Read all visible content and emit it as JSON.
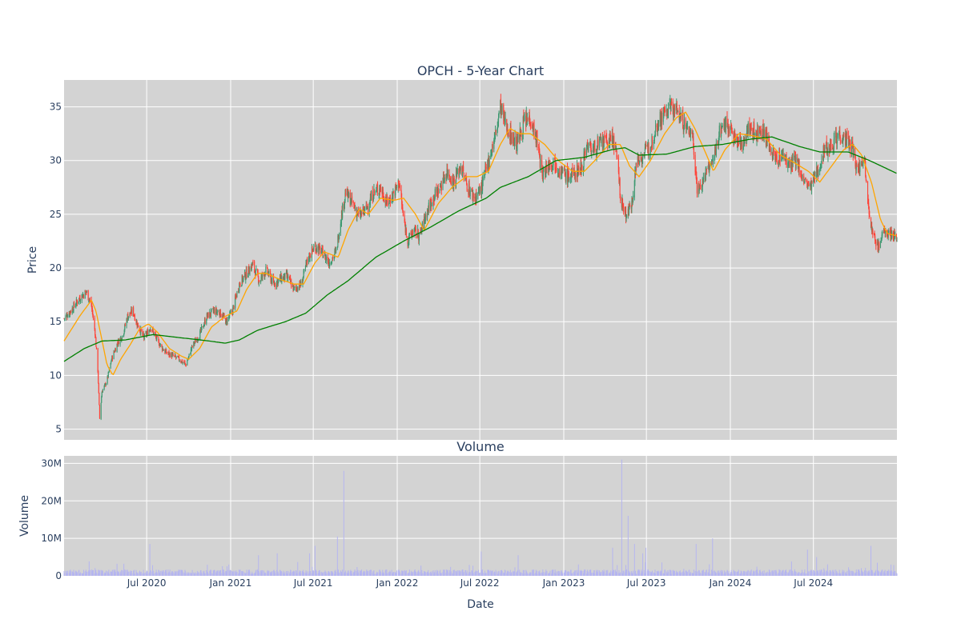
{
  "chart_data": [
    {
      "type": "candlestick",
      "title": "OPCH - 5-Year Chart",
      "ylabel": "Price",
      "ylim": [
        4,
        37.5
      ],
      "yticks": [
        5,
        10,
        15,
        20,
        25,
        30,
        35
      ],
      "xlim": [
        "2020-01-02",
        "2024-12-31"
      ],
      "grid": true,
      "legend": "none",
      "colors": {
        "increasing": "#3d9970",
        "decreasing": "#ff4136",
        "ma_short": "#ffa500",
        "ma_long": "#008000",
        "plot_bg": "#d3d3d3",
        "grid": "#ffffff"
      },
      "price_path": [
        [
          "2020-01-02",
          15.3
        ],
        [
          "2020-01-20",
          16.2
        ],
        [
          "2020-02-05",
          17.2
        ],
        [
          "2020-02-20",
          17.8
        ],
        [
          "2020-03-02",
          16.5
        ],
        [
          "2020-03-10",
          14.0
        ],
        [
          "2020-03-16",
          10.5
        ],
        [
          "2020-03-20",
          6.0
        ],
        [
          "2020-03-25",
          8.5
        ],
        [
          "2020-04-05",
          9.5
        ],
        [
          "2020-04-15",
          11.5
        ],
        [
          "2020-04-28",
          13.0
        ],
        [
          "2020-05-10",
          13.8
        ],
        [
          "2020-05-20",
          15.5
        ],
        [
          "2020-06-01",
          16.0
        ],
        [
          "2020-06-10",
          14.8
        ],
        [
          "2020-06-25",
          13.5
        ],
        [
          "2020-07-10",
          14.5
        ],
        [
          "2020-07-25",
          13.2
        ],
        [
          "2020-08-10",
          12.2
        ],
        [
          "2020-08-28",
          11.8
        ],
        [
          "2020-09-10",
          11.5
        ],
        [
          "2020-09-25",
          11.0
        ],
        [
          "2020-10-10",
          12.8
        ],
        [
          "2020-10-25",
          13.8
        ],
        [
          "2020-11-10",
          15.5
        ],
        [
          "2020-11-25",
          16.0
        ],
        [
          "2020-12-10",
          15.8
        ],
        [
          "2020-12-22",
          15.0
        ],
        [
          "2021-01-05",
          16.0
        ],
        [
          "2021-01-20",
          18.5
        ],
        [
          "2021-02-05",
          19.5
        ],
        [
          "2021-02-18",
          20.3
        ],
        [
          "2021-03-05",
          18.8
        ],
        [
          "2021-03-20",
          19.8
        ],
        [
          "2021-04-05",
          18.5
        ],
        [
          "2021-04-20",
          19.0
        ],
        [
          "2021-05-05",
          19.2
        ],
        [
          "2021-05-20",
          18.0
        ],
        [
          "2021-06-05",
          18.5
        ],
        [
          "2021-06-20",
          21.0
        ],
        [
          "2021-07-05",
          22.0
        ],
        [
          "2021-07-20",
          21.5
        ],
        [
          "2021-08-05",
          20.5
        ],
        [
          "2021-08-20",
          21.5
        ],
        [
          "2021-09-01",
          25.0
        ],
        [
          "2021-09-10",
          27.0
        ],
        [
          "2021-09-25",
          26.0
        ],
        [
          "2021-10-10",
          24.8
        ],
        [
          "2021-10-25",
          25.5
        ],
        [
          "2021-11-10",
          27.0
        ],
        [
          "2021-11-25",
          27.5
        ],
        [
          "2021-12-10",
          26.0
        ],
        [
          "2021-12-25",
          27.0
        ],
        [
          "2022-01-05",
          28.0
        ],
        [
          "2022-01-15",
          24.5
        ],
        [
          "2022-01-25",
          22.5
        ],
        [
          "2022-02-05",
          23.5
        ],
        [
          "2022-02-20",
          23.0
        ],
        [
          "2022-03-05",
          25.0
        ],
        [
          "2022-03-20",
          26.5
        ],
        [
          "2022-04-05",
          27.5
        ],
        [
          "2022-04-20",
          29.0
        ],
        [
          "2022-05-05",
          28.0
        ],
        [
          "2022-05-20",
          29.5
        ],
        [
          "2022-06-05",
          27.5
        ],
        [
          "2022-06-20",
          26.5
        ],
        [
          "2022-07-05",
          27.5
        ],
        [
          "2022-07-20",
          30.0
        ],
        [
          "2022-08-05",
          32.5
        ],
        [
          "2022-08-15",
          35.0
        ],
        [
          "2022-08-25",
          33.5
        ],
        [
          "2022-09-05",
          32.5
        ],
        [
          "2022-09-20",
          31.5
        ],
        [
          "2022-10-05",
          33.5
        ],
        [
          "2022-10-20",
          34.0
        ],
        [
          "2022-11-05",
          31.5
        ],
        [
          "2022-11-15",
          28.5
        ],
        [
          "2022-11-25",
          29.5
        ],
        [
          "2022-12-10",
          30.0
        ],
        [
          "2022-12-25",
          29.0
        ],
        [
          "2023-01-10",
          28.5
        ],
        [
          "2023-01-25",
          28.8
        ],
        [
          "2023-02-10",
          29.5
        ],
        [
          "2023-02-20",
          31.5
        ],
        [
          "2023-03-05",
          31.0
        ],
        [
          "2023-03-20",
          31.5
        ],
        [
          "2023-04-05",
          31.8
        ],
        [
          "2023-04-20",
          32.0
        ],
        [
          "2023-05-01",
          29.0
        ],
        [
          "2023-05-05",
          26.5
        ],
        [
          "2023-05-15",
          25.0
        ],
        [
          "2023-05-28",
          25.5
        ],
        [
          "2023-06-10",
          30.0
        ],
        [
          "2023-06-25",
          30.5
        ],
        [
          "2023-07-10",
          31.5
        ],
        [
          "2023-07-25",
          33.5
        ],
        [
          "2023-08-10",
          34.5
        ],
        [
          "2023-08-25",
          35.0
        ],
        [
          "2023-09-10",
          34.5
        ],
        [
          "2023-09-25",
          33.0
        ],
        [
          "2023-10-10",
          32.5
        ],
        [
          "2023-10-20",
          27.5
        ],
        [
          "2023-10-28",
          27.5
        ],
        [
          "2023-11-10",
          29.0
        ],
        [
          "2023-11-25",
          30.0
        ],
        [
          "2023-12-10",
          33.0
        ],
        [
          "2023-12-25",
          33.5
        ],
        [
          "2024-01-10",
          32.0
        ],
        [
          "2024-01-25",
          31.5
        ],
        [
          "2024-02-10",
          33.0
        ],
        [
          "2024-02-25",
          32.5
        ],
        [
          "2024-03-10",
          33.0
        ],
        [
          "2024-03-25",
          31.5
        ],
        [
          "2024-04-10",
          30.0
        ],
        [
          "2024-04-25",
          30.5
        ],
        [
          "2024-05-10",
          29.5
        ],
        [
          "2024-05-25",
          30.0
        ],
        [
          "2024-06-10",
          28.0
        ],
        [
          "2024-06-25",
          27.5
        ],
        [
          "2024-07-10",
          29.0
        ],
        [
          "2024-07-25",
          31.0
        ],
        [
          "2024-08-10",
          31.5
        ],
        [
          "2024-08-25",
          32.5
        ],
        [
          "2024-09-10",
          32.0
        ],
        [
          "2024-09-25",
          31.0
        ],
        [
          "2024-10-05",
          29.0
        ],
        [
          "2024-10-20",
          30.5
        ],
        [
          "2024-11-01",
          25.0
        ],
        [
          "2024-11-08",
          23.0
        ],
        [
          "2024-11-20",
          22.0
        ],
        [
          "2024-12-05",
          23.5
        ],
        [
          "2024-12-31",
          22.8
        ]
      ],
      "ma_short_path": [
        [
          "2020-01-02",
          13.2
        ],
        [
          "2020-02-05",
          15.5
        ],
        [
          "2020-03-02",
          17.0
        ],
        [
          "2020-03-12",
          16.0
        ],
        [
          "2020-04-05",
          11.0
        ],
        [
          "2020-04-18",
          10.0
        ],
        [
          "2020-05-05",
          11.5
        ],
        [
          "2020-05-25",
          12.8
        ],
        [
          "2020-06-15",
          14.3
        ],
        [
          "2020-07-05",
          14.8
        ],
        [
          "2020-07-25",
          14.0
        ],
        [
          "2020-08-20",
          12.5
        ],
        [
          "2020-09-15",
          11.8
        ],
        [
          "2020-10-01",
          11.5
        ],
        [
          "2020-10-25",
          12.5
        ],
        [
          "2020-11-20",
          14.5
        ],
        [
          "2020-12-20",
          15.5
        ],
        [
          "2021-01-15",
          16.0
        ],
        [
          "2021-02-05",
          18.0
        ],
        [
          "2021-03-01",
          19.5
        ],
        [
          "2021-03-20",
          19.5
        ],
        [
          "2021-04-15",
          19.0
        ],
        [
          "2021-05-20",
          18.5
        ],
        [
          "2021-06-10",
          18.5
        ],
        [
          "2021-07-05",
          20.5
        ],
        [
          "2021-07-25",
          21.5
        ],
        [
          "2021-08-25",
          21.0
        ],
        [
          "2021-09-15",
          23.5
        ],
        [
          "2021-10-10",
          25.5
        ],
        [
          "2021-10-30",
          25.0
        ],
        [
          "2021-11-25",
          26.5
        ],
        [
          "2021-12-25",
          26.3
        ],
        [
          "2022-01-15",
          26.5
        ],
        [
          "2022-02-10",
          25.0
        ],
        [
          "2022-03-01",
          23.5
        ],
        [
          "2022-04-01",
          26.0
        ],
        [
          "2022-05-01",
          27.5
        ],
        [
          "2022-06-01",
          28.5
        ],
        [
          "2022-06-25",
          28.5
        ],
        [
          "2022-07-20",
          29.0
        ],
        [
          "2022-08-15",
          31.5
        ],
        [
          "2022-09-05",
          33.0
        ],
        [
          "2022-09-25",
          32.5
        ],
        [
          "2022-10-20",
          32.5
        ],
        [
          "2022-11-20",
          31.5
        ],
        [
          "2022-12-20",
          30.0
        ],
        [
          "2023-01-20",
          29.0
        ],
        [
          "2023-02-15",
          29.0
        ],
        [
          "2023-03-10",
          30.0
        ],
        [
          "2023-04-10",
          31.5
        ],
        [
          "2023-05-05",
          31.5
        ],
        [
          "2023-05-25",
          29.5
        ],
        [
          "2023-06-15",
          28.5
        ],
        [
          "2023-07-10",
          30.0
        ],
        [
          "2023-08-10",
          32.5
        ],
        [
          "2023-09-05",
          34.0
        ],
        [
          "2023-09-25",
          34.5
        ],
        [
          "2023-10-15",
          33.0
        ],
        [
          "2023-11-10",
          30.5
        ],
        [
          "2023-11-25",
          29.0
        ],
        [
          "2023-12-20",
          31.0
        ],
        [
          "2024-01-20",
          32.5
        ],
        [
          "2024-02-20",
          32.3
        ],
        [
          "2024-03-20",
          32.0
        ],
        [
          "2024-04-20",
          30.5
        ],
        [
          "2024-05-20",
          29.8
        ],
        [
          "2024-06-20",
          29.0
        ],
        [
          "2024-07-15",
          28.0
        ],
        [
          "2024-08-10",
          29.5
        ],
        [
          "2024-09-05",
          31.0
        ],
        [
          "2024-09-25",
          31.5
        ],
        [
          "2024-10-15",
          30.5
        ],
        [
          "2024-11-05",
          28.0
        ],
        [
          "2024-11-25",
          24.5
        ],
        [
          "2024-12-10",
          23.2
        ],
        [
          "2024-12-31",
          23.0
        ]
      ],
      "ma_long_path": [
        [
          "2020-01-02",
          11.3
        ],
        [
          "2020-02-15",
          12.5
        ],
        [
          "2020-03-25",
          13.2
        ],
        [
          "2020-05-15",
          13.3
        ],
        [
          "2020-07-15",
          13.8
        ],
        [
          "2020-09-15",
          13.5
        ],
        [
          "2020-11-15",
          13.2
        ],
        [
          "2020-12-20",
          13.0
        ],
        [
          "2021-01-20",
          13.3
        ],
        [
          "2021-03-01",
          14.2
        ],
        [
          "2021-05-01",
          15.0
        ],
        [
          "2021-06-15",
          15.8
        ],
        [
          "2021-08-01",
          17.5
        ],
        [
          "2021-09-15",
          18.8
        ],
        [
          "2021-11-15",
          21.0
        ],
        [
          "2022-01-15",
          22.5
        ],
        [
          "2022-03-15",
          23.8
        ],
        [
          "2022-05-15",
          25.3
        ],
        [
          "2022-07-15",
          26.5
        ],
        [
          "2022-08-15",
          27.5
        ],
        [
          "2022-10-15",
          28.5
        ],
        [
          "2022-12-15",
          30.0
        ],
        [
          "2023-02-15",
          30.3
        ],
        [
          "2023-04-15",
          31.0
        ],
        [
          "2023-05-15",
          31.2
        ],
        [
          "2023-06-15",
          30.5
        ],
        [
          "2023-08-15",
          30.6
        ],
        [
          "2023-10-15",
          31.3
        ],
        [
          "2023-12-15",
          31.5
        ],
        [
          "2024-02-15",
          32.0
        ],
        [
          "2024-04-01",
          32.2
        ],
        [
          "2024-06-01",
          31.3
        ],
        [
          "2024-07-15",
          30.8
        ],
        [
          "2024-09-15",
          30.8
        ],
        [
          "2024-11-01",
          30.0
        ],
        [
          "2024-12-31",
          28.8
        ]
      ]
    },
    {
      "type": "bar",
      "title": "Volume",
      "xlabel": "Date",
      "ylabel": "Volume",
      "ylim": [
        0,
        32000000
      ],
      "yticks": [
        0,
        10000000,
        20000000,
        30000000
      ],
      "ytick_labels": [
        "0",
        "10M",
        "20M",
        "30M"
      ],
      "xtick_labels": [
        "Jul 2020",
        "Jan 2021",
        "Jul 2021",
        "Jan 2022",
        "Jul 2022",
        "Jan 2023",
        "Jul 2023",
        "Jan 2024",
        "Jul 2024"
      ],
      "xticks": [
        "2020-07-01",
        "2021-01-01",
        "2021-07-01",
        "2022-01-01",
        "2022-07-01",
        "2023-01-01",
        "2023-07-01",
        "2024-01-01",
        "2024-07-01"
      ],
      "colors": {
        "bar": "#b5b5f0"
      },
      "volume_spikes": [
        [
          "2020-07-10",
          8500000
        ],
        [
          "2020-12-30",
          3000000
        ],
        [
          "2021-03-05",
          5500000
        ],
        [
          "2021-04-15",
          6000000
        ],
        [
          "2021-06-25",
          6000000
        ],
        [
          "2021-07-05",
          8000000
        ],
        [
          "2021-08-25",
          10500000
        ],
        [
          "2021-09-08",
          28000000
        ],
        [
          "2022-07-05",
          6500000
        ],
        [
          "2022-09-25",
          5500000
        ],
        [
          "2023-04-20",
          7500000
        ],
        [
          "2023-05-08",
          31000000
        ],
        [
          "2023-05-22",
          16000000
        ],
        [
          "2023-06-05",
          8500000
        ],
        [
          "2023-06-25",
          6000000
        ],
        [
          "2023-07-02",
          7500000
        ],
        [
          "2023-10-20",
          8500000
        ],
        [
          "2023-11-25",
          10000000
        ],
        [
          "2024-06-20",
          7000000
        ],
        [
          "2024-07-10",
          5000000
        ],
        [
          "2024-11-05",
          8000000
        ],
        [
          "2024-11-20",
          3500000
        ],
        [
          "2024-12-20",
          3000000
        ]
      ]
    }
  ]
}
